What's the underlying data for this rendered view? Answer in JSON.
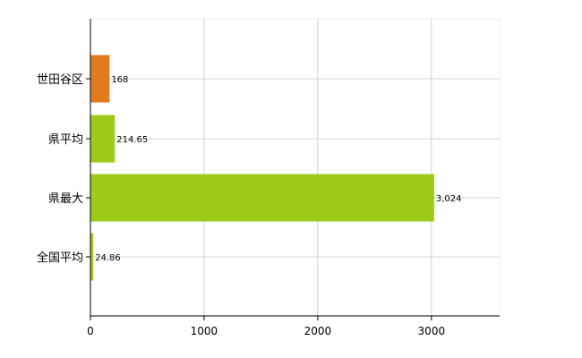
{
  "chart_data": {
    "type": "bar",
    "orientation": "horizontal",
    "categories": [
      "世田谷区",
      "県平均",
      "県最大",
      "全国平均"
    ],
    "values": [
      168,
      214.65,
      3024,
      24.86
    ],
    "value_labels": [
      "168",
      "214.65",
      "3,024",
      "24.86"
    ],
    "bar_colors": [
      "#e07a1f",
      "#9ccb19",
      "#9ccb19",
      "#9ccb19"
    ],
    "x_ticks": [
      0,
      1000,
      2000,
      3000
    ],
    "xlim": [
      0,
      3600
    ],
    "title": "",
    "xlabel": "",
    "ylabel": "",
    "grid": true,
    "legend": "none"
  }
}
